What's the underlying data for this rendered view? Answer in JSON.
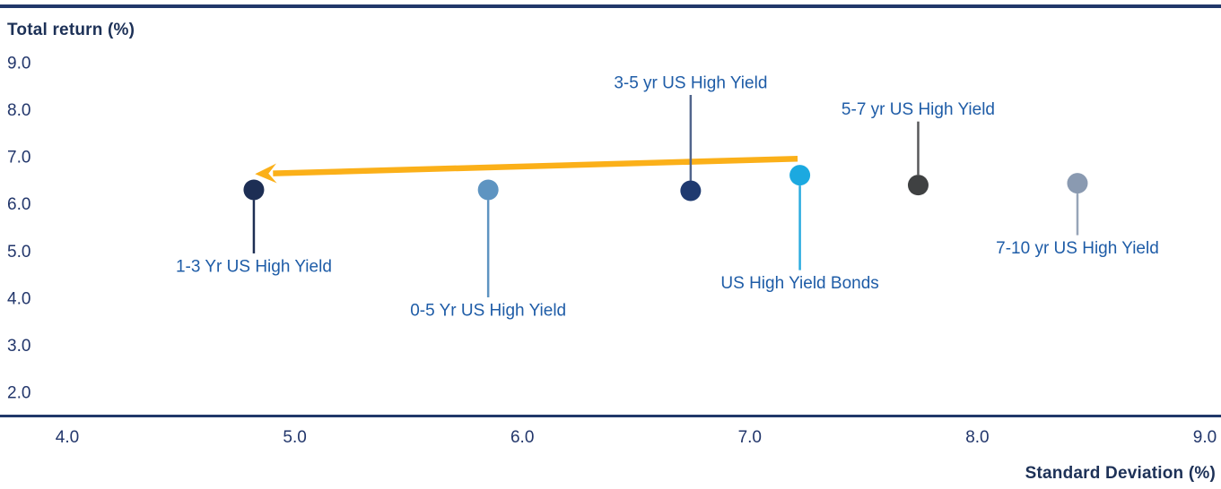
{
  "chart": {
    "y_title": "Total return (%)",
    "x_title": "Standard Deviation (%)"
  },
  "chart_data": {
    "type": "scatter",
    "title": "",
    "xlabel": "Standard Deviation (%)",
    "ylabel": "Total return (%)",
    "xlim": [
      4.0,
      9.0
    ],
    "ylim": [
      2.0,
      9.0
    ],
    "grid": false,
    "legend": "none (points labeled directly with leader lines)",
    "x_ticks": [
      "4.0",
      "5.0",
      "6.0",
      "7.0",
      "8.0",
      "9.0"
    ],
    "y_ticks": [
      "9.0",
      "8.0",
      "7.0",
      "6.0",
      "5.0",
      "4.0",
      "3.0",
      "2.0"
    ],
    "label_color": "#1e5ca7",
    "axis_color": "#21386a",
    "points": [
      {
        "label": "1-3 Yr US High Yield",
        "x": 4.82,
        "y": 6.3,
        "color": "#1d2e54",
        "leader_color": "#1d2e54",
        "label_side": "below",
        "label_offset": 85
      },
      {
        "label": "0-5 Yr US High Yield",
        "x": 5.85,
        "y": 6.3,
        "color": "#5e94c1",
        "leader_color": "#5e94c1",
        "label_side": "below",
        "label_offset": 134
      },
      {
        "label": "3-5 yr US High Yield",
        "x": 6.74,
        "y": 6.28,
        "color": "#1f3a70",
        "leader_color": "#51658c",
        "label_side": "above",
        "label_offset": 121
      },
      {
        "label": "US High Yield Bonds",
        "x": 7.22,
        "y": 6.61,
        "color": "#1ca9e0",
        "leader_color": "#2aabdf",
        "label_side": "below",
        "label_offset": 120
      },
      {
        "label": "5-7 yr US High Yield",
        "x": 7.74,
        "y": 6.4,
        "color": "#3f4142",
        "leader_color": "#58595b",
        "label_side": "above",
        "label_offset": 85
      },
      {
        "label": "7-10 yr US High Yield",
        "x": 8.44,
        "y": 6.44,
        "color": "#8a9ab1",
        "leader_color": "#97a5b8",
        "label_side": "below",
        "label_offset": 72
      }
    ],
    "arrow": {
      "meaning": "points left from US High Yield Bonds toward 1-3 Yr US High Yield",
      "from": {
        "x": 7.21,
        "y": 6.96
      },
      "to": {
        "x": 4.92,
        "y": 6.65
      },
      "color": "#fbb019"
    }
  }
}
